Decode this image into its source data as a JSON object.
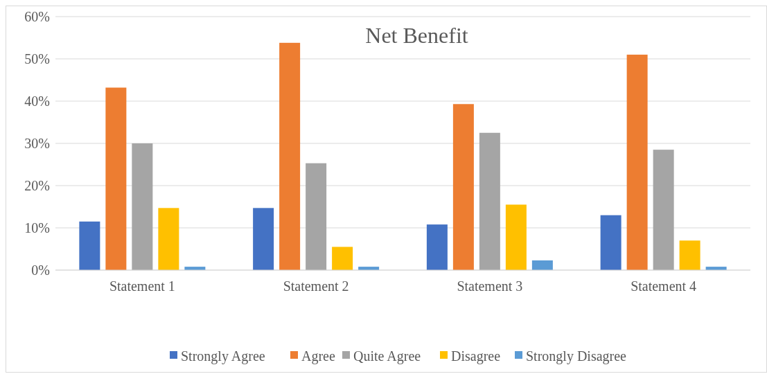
{
  "chart_data": {
    "type": "bar",
    "title": "Net Benefit",
    "categories": [
      "Statement 1",
      "Statement 2",
      "Statement 3",
      "Statement 4"
    ],
    "series": [
      {
        "name": "Strongly Agree",
        "color": "#4472c4",
        "values": [
          11.5,
          14.7,
          10.8,
          13
        ]
      },
      {
        "name": "Agree",
        "color": "#ed7d31",
        "values": [
          43.2,
          53.8,
          39.3,
          51
        ]
      },
      {
        "name": "Quite Agree",
        "color": "#a5a5a5",
        "values": [
          30,
          25.3,
          32.5,
          28.5
        ]
      },
      {
        "name": "Disagree",
        "color": "#ffc000",
        "values": [
          14.7,
          5.5,
          15.5,
          7
        ]
      },
      {
        "name": "Strongly Disagree",
        "color": "#5b9bd5",
        "values": [
          0.8,
          0.8,
          2.3,
          0.8
        ]
      }
    ],
    "ylim": [
      0,
      60
    ],
    "yticks": [
      {
        "value": 0,
        "label": "0%"
      },
      {
        "value": 10,
        "label": "10%"
      },
      {
        "value": 20,
        "label": "20%"
      },
      {
        "value": 30,
        "label": "30%"
      },
      {
        "value": 40,
        "label": "40%"
      },
      {
        "value": 50,
        "label": "50%"
      },
      {
        "value": 60,
        "label": "60%"
      }
    ],
    "grid": "y",
    "legend": "bottom"
  }
}
